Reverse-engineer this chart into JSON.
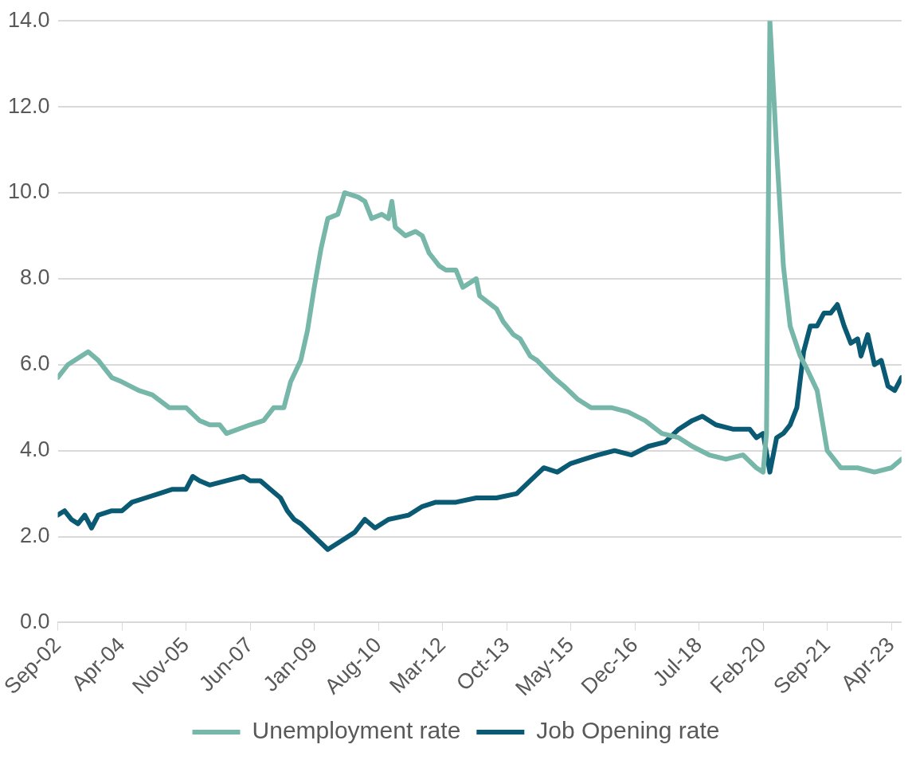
{
  "chart_data": {
    "type": "line",
    "xlim": [
      "2002-09",
      "2023-07"
    ],
    "xticks": [
      {
        "value": "2002-09",
        "label": "Sep-02"
      },
      {
        "value": "2004-04",
        "label": "Apr-04"
      },
      {
        "value": "2005-11",
        "label": "Nov-05"
      },
      {
        "value": "2007-06",
        "label": "Jun-07"
      },
      {
        "value": "2009-01",
        "label": "Jan-09"
      },
      {
        "value": "2010-08",
        "label": "Aug-10"
      },
      {
        "value": "2012-03",
        "label": "Mar-12"
      },
      {
        "value": "2013-10",
        "label": "Oct-13"
      },
      {
        "value": "2015-05",
        "label": "May-15"
      },
      {
        "value": "2016-12",
        "label": "Dec-16"
      },
      {
        "value": "2018-07",
        "label": "Jul-18"
      },
      {
        "value": "2020-02",
        "label": "Feb-20"
      },
      {
        "value": "2021-09",
        "label": "Sep-21"
      },
      {
        "value": "2023-04",
        "label": "Apr-23"
      }
    ],
    "ylim": [
      0,
      14
    ],
    "yticks": [
      {
        "value": 0,
        "label": "0.0"
      },
      {
        "value": 2,
        "label": "2.0"
      },
      {
        "value": 4,
        "label": "4.0"
      },
      {
        "value": 6,
        "label": "6.0"
      },
      {
        "value": 8,
        "label": "8.0"
      },
      {
        "value": 10,
        "label": "10.0"
      },
      {
        "value": 12,
        "label": "12.0"
      },
      {
        "value": 14,
        "label": "14.0"
      }
    ],
    "grid": "y",
    "legend": "bottom",
    "marker": "none",
    "line_style": "solid",
    "series": [
      {
        "name": "Unemployment rate",
        "color": "#76b7a9",
        "x": [
          "2002-09",
          "2002-12",
          "2003-06",
          "2003-09",
          "2004-01",
          "2004-04",
          "2004-09",
          "2005-01",
          "2005-06",
          "2005-11",
          "2006-03",
          "2006-06",
          "2006-09",
          "2006-11",
          "2007-06",
          "2007-10",
          "2008-01",
          "2008-04",
          "2008-06",
          "2008-09",
          "2008-11",
          "2009-01",
          "2009-03",
          "2009-05",
          "2009-08",
          "2009-10",
          "2010-02",
          "2010-04",
          "2010-06",
          "2010-09",
          "2010-11",
          "2010-12",
          "2011-01",
          "2011-04",
          "2011-07",
          "2011-09",
          "2011-11",
          "2012-02",
          "2012-04",
          "2012-07",
          "2012-09",
          "2013-01",
          "2013-02",
          "2013-07",
          "2013-09",
          "2013-12",
          "2014-02",
          "2014-05",
          "2014-07",
          "2014-12",
          "2015-03",
          "2015-07",
          "2015-11",
          "2016-05",
          "2016-10",
          "2017-03",
          "2017-08",
          "2018-01",
          "2018-05",
          "2018-10",
          "2019-03",
          "2019-08",
          "2019-12",
          "2020-02",
          "2020-03",
          "2020-04",
          "2020-06",
          "2020-08",
          "2020-10",
          "2021-01",
          "2021-03",
          "2021-06",
          "2021-09",
          "2022-01",
          "2022-06",
          "2022-11",
          "2023-04",
          "2023-07"
        ],
        "values": [
          5.7,
          6.0,
          6.3,
          6.1,
          5.7,
          5.6,
          5.4,
          5.3,
          5.0,
          5.0,
          4.7,
          4.6,
          4.6,
          4.4,
          4.6,
          4.7,
          5.0,
          5.0,
          5.6,
          6.1,
          6.8,
          7.8,
          8.7,
          9.4,
          9.5,
          10.0,
          9.9,
          9.8,
          9.4,
          9.5,
          9.4,
          9.8,
          9.2,
          9.0,
          9.1,
          9.0,
          8.6,
          8.3,
          8.2,
          8.2,
          7.8,
          8.0,
          7.6,
          7.3,
          7.0,
          6.7,
          6.6,
          6.2,
          6.1,
          5.7,
          5.5,
          5.2,
          5.0,
          5.0,
          4.9,
          4.7,
          4.4,
          4.3,
          4.1,
          3.9,
          3.8,
          3.9,
          3.6,
          3.5,
          4.4,
          14.0,
          11.0,
          8.3,
          6.9,
          6.2,
          5.9,
          5.4,
          4.0,
          3.6,
          3.6,
          3.5,
          3.6,
          3.8
        ]
      },
      {
        "name": "Job Opening rate",
        "color": "#0b5a73",
        "x": [
          "2002-09",
          "2002-11",
          "2003-01",
          "2003-03",
          "2003-05",
          "2003-07",
          "2003-09",
          "2004-01",
          "2004-04",
          "2004-07",
          "2004-11",
          "2005-03",
          "2005-07",
          "2005-11",
          "2006-01",
          "2006-03",
          "2006-06",
          "2006-11",
          "2007-04",
          "2007-06",
          "2007-09",
          "2007-12",
          "2008-03",
          "2008-05",
          "2008-07",
          "2008-09",
          "2009-01",
          "2009-05",
          "2009-09",
          "2010-01",
          "2010-04",
          "2010-07",
          "2010-11",
          "2011-05",
          "2011-09",
          "2012-01",
          "2012-07",
          "2013-01",
          "2013-07",
          "2014-01",
          "2014-05",
          "2014-09",
          "2015-01",
          "2015-05",
          "2015-09",
          "2016-01",
          "2016-06",
          "2016-11",
          "2017-04",
          "2017-09",
          "2018-01",
          "2018-05",
          "2018-08",
          "2018-12",
          "2019-05",
          "2019-10",
          "2019-12",
          "2020-02",
          "2020-04",
          "2020-06",
          "2020-08",
          "2020-10",
          "2020-12",
          "2021-02",
          "2021-04",
          "2021-06",
          "2021-08",
          "2021-10",
          "2021-12",
          "2022-02",
          "2022-04",
          "2022-06",
          "2022-07",
          "2022-09",
          "2022-11",
          "2023-01",
          "2023-03",
          "2023-05",
          "2023-07"
        ],
        "values": [
          2.5,
          2.6,
          2.4,
          2.3,
          2.5,
          2.2,
          2.5,
          2.6,
          2.6,
          2.8,
          2.9,
          3.0,
          3.1,
          3.1,
          3.4,
          3.3,
          3.2,
          3.3,
          3.4,
          3.3,
          3.3,
          3.1,
          2.9,
          2.6,
          2.4,
          2.3,
          2.0,
          1.7,
          1.9,
          2.1,
          2.4,
          2.2,
          2.4,
          2.5,
          2.7,
          2.8,
          2.8,
          2.9,
          2.9,
          3.0,
          3.3,
          3.6,
          3.5,
          3.7,
          3.8,
          3.9,
          4.0,
          3.9,
          4.1,
          4.2,
          4.5,
          4.7,
          4.8,
          4.6,
          4.5,
          4.5,
          4.3,
          4.4,
          3.5,
          4.3,
          4.4,
          4.6,
          5.0,
          6.3,
          6.9,
          6.9,
          7.2,
          7.2,
          7.4,
          6.9,
          6.5,
          6.6,
          6.2,
          6.7,
          6.0,
          6.1,
          5.5,
          5.4,
          5.7
        ]
      }
    ]
  }
}
